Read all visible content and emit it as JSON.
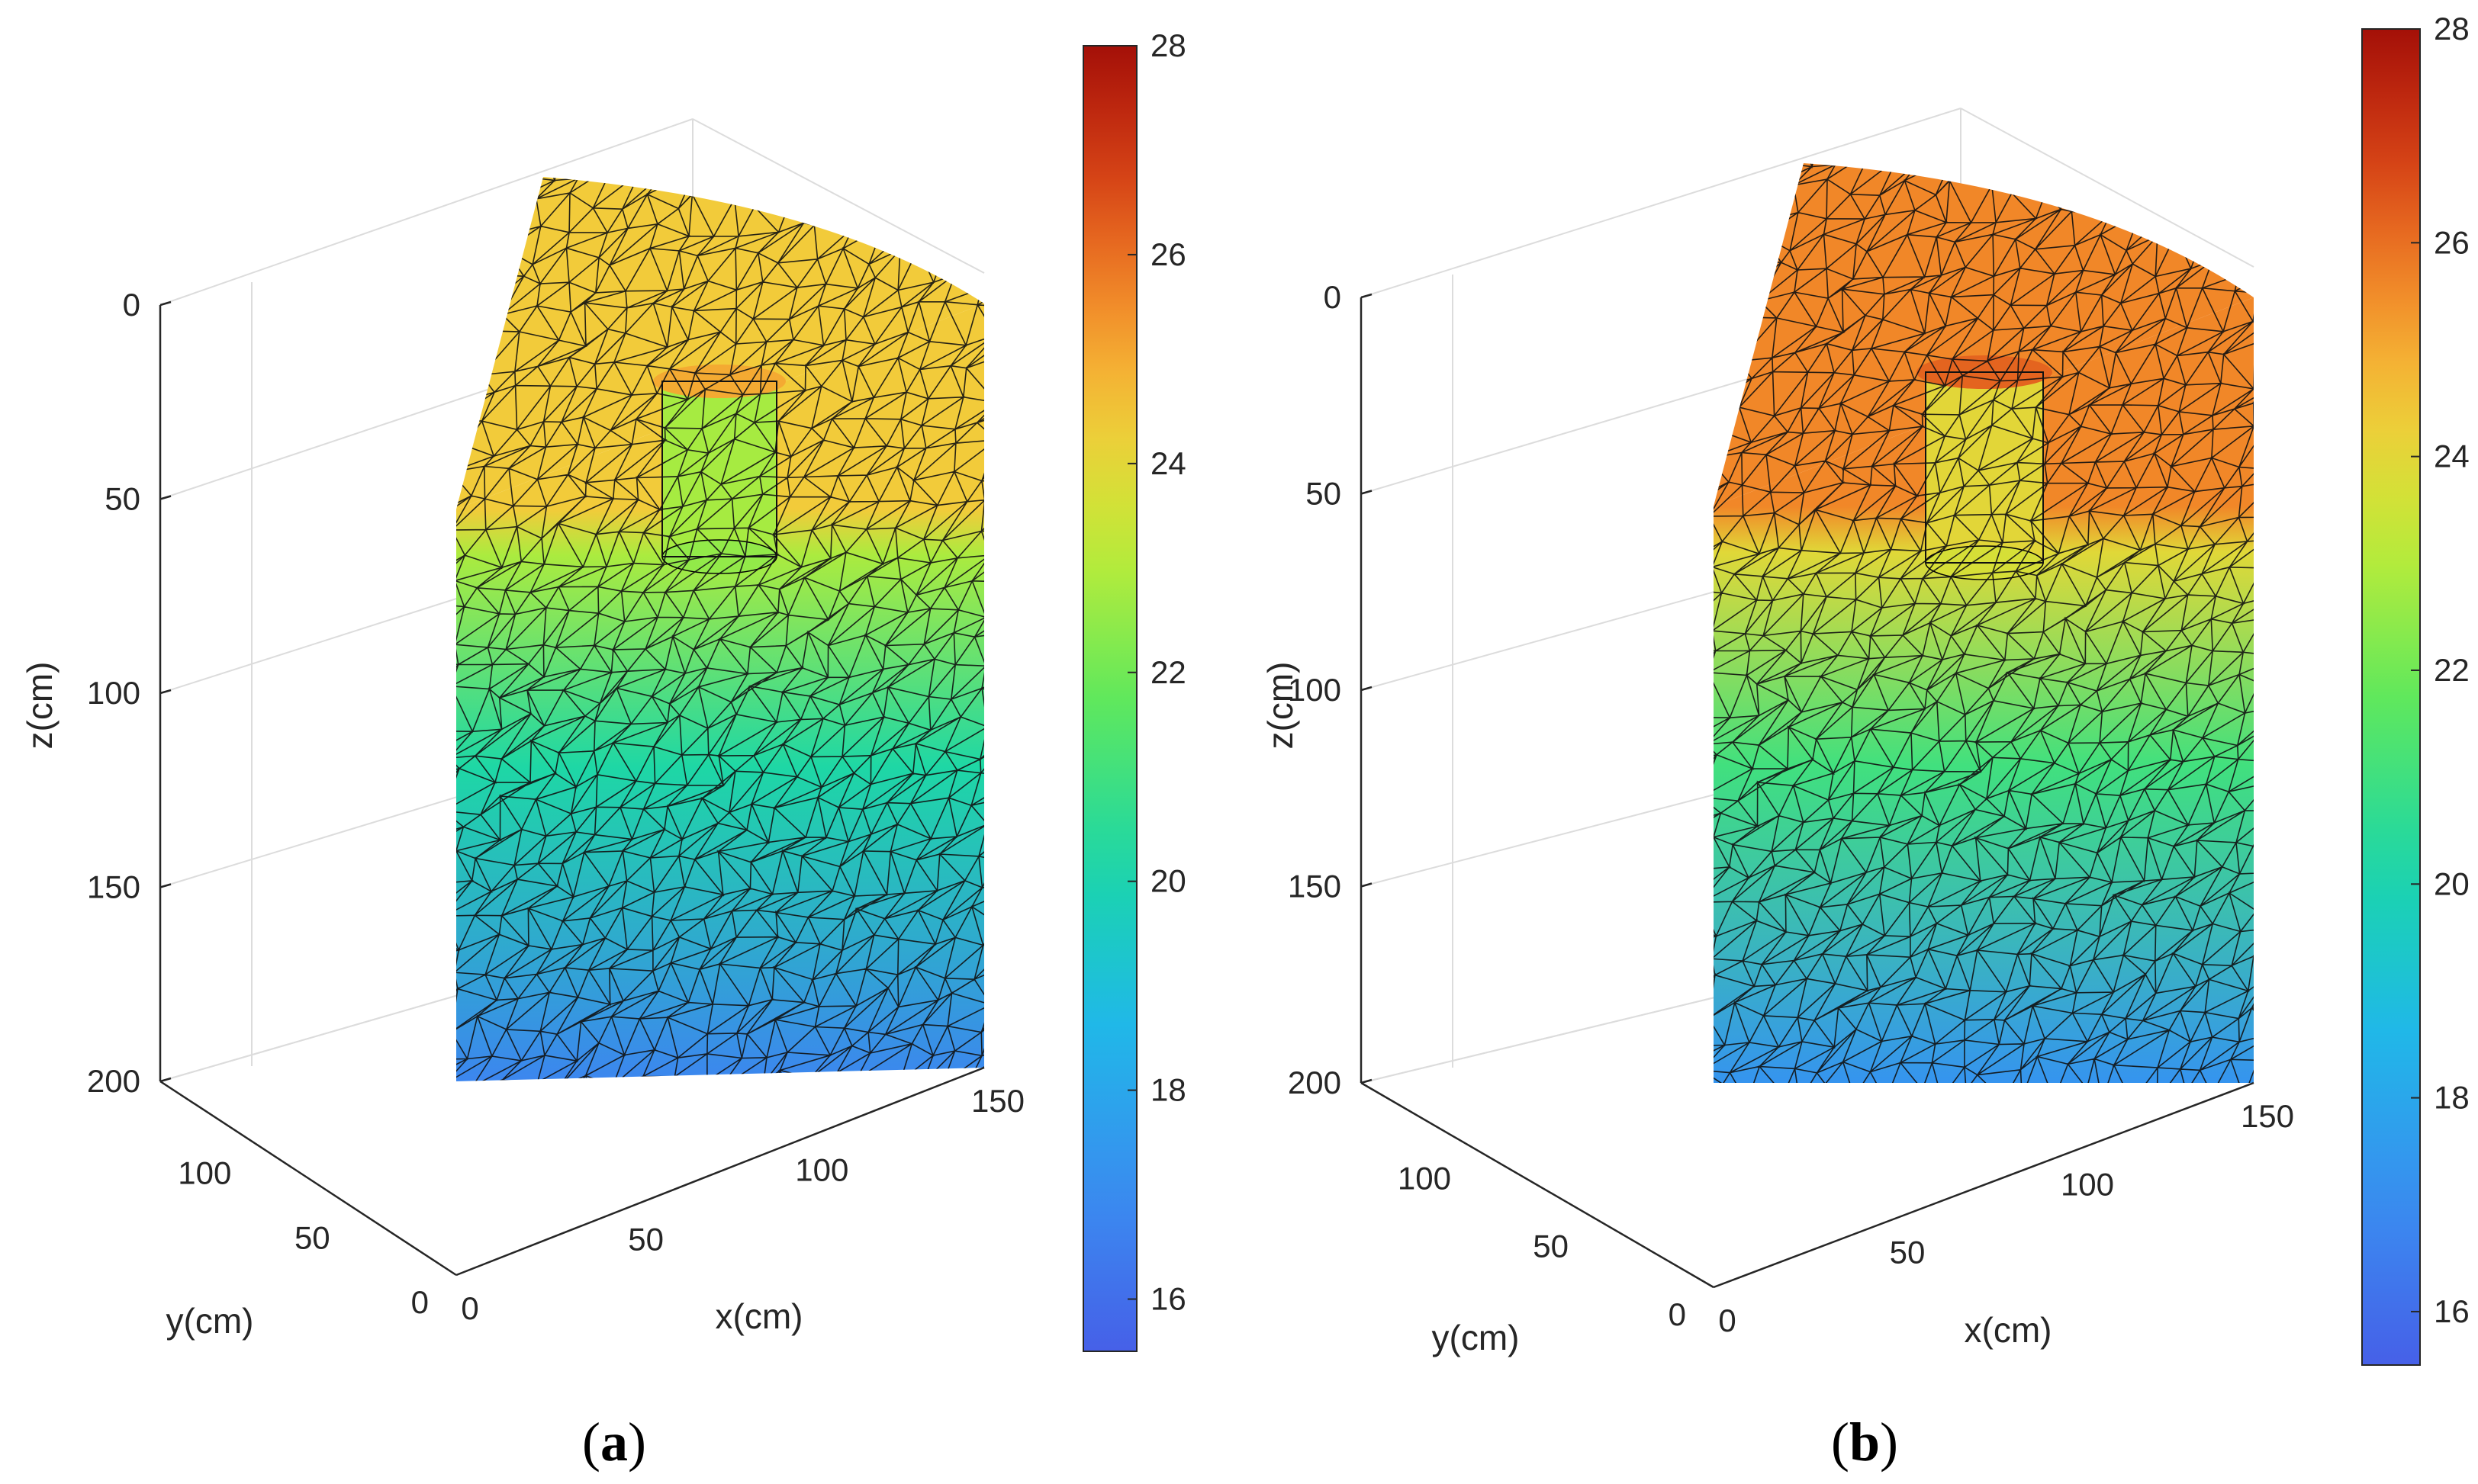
{
  "chart_data": [
    {
      "type": "heatmap",
      "caption": "a",
      "title": "",
      "xlabel": "x(cm)",
      "ylabel": "y(cm)",
      "zlabel": "z(cm)",
      "xticks": [
        "0",
        "50",
        "100",
        "150"
      ],
      "yticks": [
        "0",
        "50",
        "100"
      ],
      "zticks": [
        "0",
        "50",
        "100",
        "150",
        "200"
      ],
      "xlim": [
        0,
        150
      ],
      "ylim": [
        0,
        150
      ],
      "zlim": [
        0,
        200
      ],
      "z_direction": "down",
      "colorbar": {
        "min": 15.5,
        "max": 28,
        "ticks": [
          "16",
          "18",
          "20",
          "22",
          "24",
          "26",
          "28"
        ],
        "colormap": "turbo"
      },
      "surface_temperature": 24.4,
      "bottom_temperature": 16.8,
      "heater": {
        "radius_cm": 20,
        "depth_cm": 60,
        "surface_temperature": 22.8
      },
      "grid": true
    },
    {
      "type": "heatmap",
      "caption": "b",
      "title": "",
      "xlabel": "x(cm)",
      "ylabel": "y(cm)",
      "zlabel": "z(cm)",
      "xticks": [
        "0",
        "50",
        "100",
        "150"
      ],
      "yticks": [
        "0",
        "50",
        "100"
      ],
      "zticks": [
        "0",
        "50",
        "100",
        "150",
        "200"
      ],
      "xlim": [
        0,
        150
      ],
      "ylim": [
        0,
        150
      ],
      "zlim": [
        0,
        200
      ],
      "z_direction": "down",
      "colorbar": {
        "min": 15.5,
        "max": 28,
        "ticks": [
          "16",
          "18",
          "20",
          "22",
          "24",
          "26",
          "28"
        ],
        "colormap": "turbo"
      },
      "surface_temperature": 25.6,
      "bottom_temperature": 17.3,
      "heater": {
        "radius_cm": 20,
        "depth_cm": 60,
        "surface_temperature": 24.0
      },
      "grid": true
    }
  ]
}
